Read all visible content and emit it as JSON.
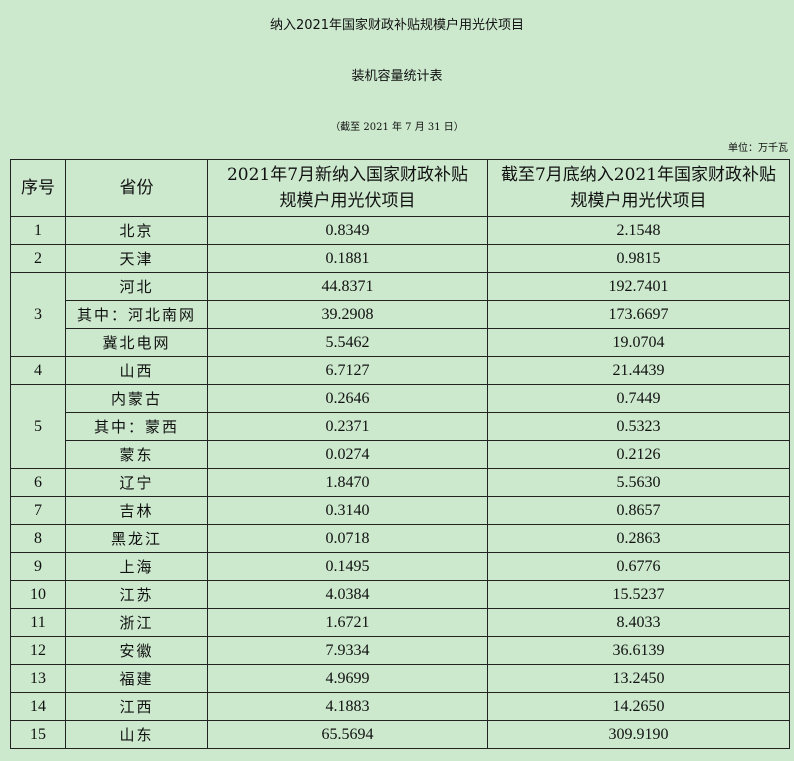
{
  "title": "纳入2021年国家财政补贴规模户用光伏项目",
  "subtitle": "装机容量统计表",
  "date_note": "（截至 2021 年 7 月 31 日）",
  "unit": "单位：万千瓦",
  "table": {
    "headers": [
      "序号",
      "省份",
      "2021年7月新纳入国家财政补贴规模户用光伏项目",
      "截至7月底纳入2021年国家财政补贴规模户用光伏项目"
    ],
    "groups": [
      {
        "no": "1",
        "rows": [
          {
            "province": "北京",
            "new": "0.8349",
            "cumulative": "2.1548"
          }
        ]
      },
      {
        "no": "2",
        "rows": [
          {
            "province": "天津",
            "new": "0.1881",
            "cumulative": "0.9815"
          }
        ]
      },
      {
        "no": "3",
        "rows": [
          {
            "province": "河北",
            "new": "44.8371",
            "cumulative": "192.7401"
          },
          {
            "province": "其中：河北南网",
            "new": "39.2908",
            "cumulative": "173.6697"
          },
          {
            "province": "冀北电网",
            "new": "5.5462",
            "cumulative": "19.0704"
          }
        ]
      },
      {
        "no": "4",
        "rows": [
          {
            "province": "山西",
            "new": "6.7127",
            "cumulative": "21.4439"
          }
        ]
      },
      {
        "no": "5",
        "rows": [
          {
            "province": "内蒙古",
            "new": "0.2646",
            "cumulative": "0.7449"
          },
          {
            "province": "其中：蒙西",
            "new": "0.2371",
            "cumulative": "0.5323"
          },
          {
            "province": "蒙东",
            "new": "0.0274",
            "cumulative": "0.2126"
          }
        ]
      },
      {
        "no": "6",
        "rows": [
          {
            "province": "辽宁",
            "new": "1.8470",
            "cumulative": "5.5630"
          }
        ]
      },
      {
        "no": "7",
        "rows": [
          {
            "province": "吉林",
            "new": "0.3140",
            "cumulative": "0.8657"
          }
        ]
      },
      {
        "no": "8",
        "rows": [
          {
            "province": "黑龙江",
            "new": "0.0718",
            "cumulative": "0.2863"
          }
        ]
      },
      {
        "no": "9",
        "rows": [
          {
            "province": "上海",
            "new": "0.1495",
            "cumulative": "0.6776"
          }
        ]
      },
      {
        "no": "10",
        "rows": [
          {
            "province": "江苏",
            "new": "4.0384",
            "cumulative": "15.5237"
          }
        ]
      },
      {
        "no": "11",
        "rows": [
          {
            "province": "浙江",
            "new": "1.6721",
            "cumulative": "8.4033"
          }
        ]
      },
      {
        "no": "12",
        "rows": [
          {
            "province": "安徽",
            "new": "7.9334",
            "cumulative": "36.6139"
          }
        ]
      },
      {
        "no": "13",
        "rows": [
          {
            "province": "福建",
            "new": "4.9699",
            "cumulative": "13.2450"
          }
        ]
      },
      {
        "no": "14",
        "rows": [
          {
            "province": "江西",
            "new": "4.1883",
            "cumulative": "14.2650"
          }
        ]
      },
      {
        "no": "15",
        "rows": [
          {
            "province": "山东",
            "new": "65.5694",
            "cumulative": "309.9190"
          }
        ]
      }
    ]
  }
}
